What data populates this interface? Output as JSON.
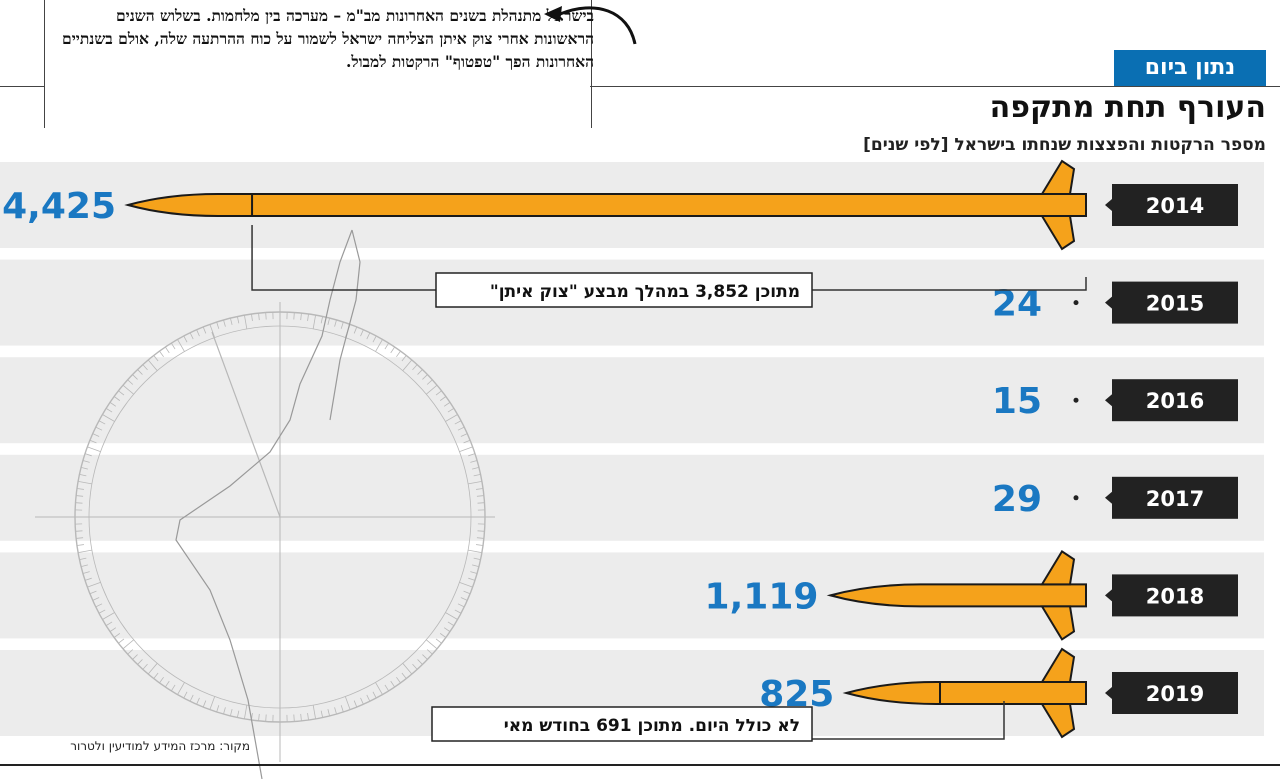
{
  "header": {
    "badge": "נתון ביום",
    "title": "העורף תחת מתקפה",
    "subtitle": "מספר הרקטות והפצצות שנחתו בישראל [לפי שנים]"
  },
  "callout": {
    "text": "בישראל מתנהלת בשנים האחרונות מב\"מ – מערכה בין מלחמות. בשלוש השנים הראשונות אחרי צוק איתן הצליחה ישראל לשמור על כוח ההרתעה שלה, אולם בשנתיים האחרונות הפך \"טפטוף\" הרקטות למבול."
  },
  "source": "מקור: מרכז המידע למודיעין ולטרור",
  "colors": {
    "rocket": "#f5a21b",
    "rocket_outline": "#1a1a1a",
    "value_text": "#1a78c2",
    "year_bg": "#222222",
    "year_text": "#ffffff",
    "stripe": "#ececec",
    "badge_bg": "#0a6fb3",
    "compass": "#b8b8b8"
  },
  "chart_data": {
    "type": "bar",
    "categories": [
      "2014",
      "2015",
      "2016",
      "2017",
      "2018",
      "2019"
    ],
    "values": [
      4425,
      24,
      15,
      29,
      1119,
      825
    ],
    "value_labels": [
      "4,425",
      "24",
      "15",
      "29",
      "1,119",
      "825"
    ],
    "annotations": [
      {
        "category": "2014",
        "text": "מתוכן 3,852 במהלך מבצע \"צוק איתן\"",
        "portion": 3852
      },
      {
        "category": "2019",
        "text": "לא כולל היום. מתוכן 691 בחודש מאי",
        "portion": 691
      }
    ]
  }
}
